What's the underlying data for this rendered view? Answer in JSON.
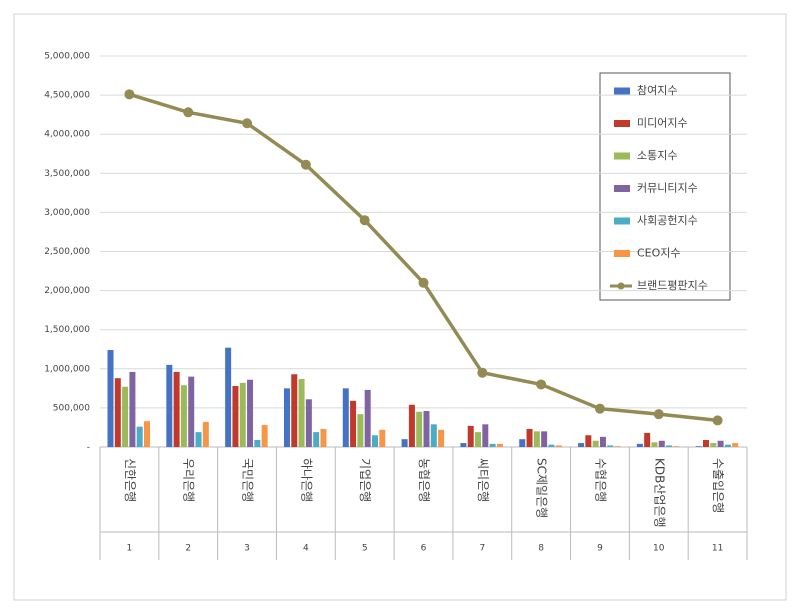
{
  "chart_data": {
    "type": "bar",
    "categories": [
      "신한은행",
      "우리은행",
      "국민은행",
      "하나은행",
      "기업은행",
      "농협은행",
      "씨티은행",
      "SC제일은행",
      "수협은행",
      "KDB산업은행",
      "수출입은행"
    ],
    "ranks": [
      1,
      2,
      3,
      4,
      5,
      6,
      7,
      8,
      9,
      10,
      11
    ],
    "series": [
      {
        "name": "참여지수",
        "color": "#4472c4",
        "values": [
          1240000,
          1050000,
          1270000,
          750000,
          750000,
          100000,
          50000,
          100000,
          50000,
          40000,
          10000
        ]
      },
      {
        "name": "미디어지수",
        "color": "#c0392b",
        "values": [
          880000,
          960000,
          780000,
          930000,
          590000,
          540000,
          270000,
          230000,
          150000,
          180000,
          90000
        ]
      },
      {
        "name": "소통지수",
        "color": "#9bbb59",
        "values": [
          770000,
          790000,
          820000,
          870000,
          420000,
          450000,
          190000,
          200000,
          80000,
          60000,
          50000
        ]
      },
      {
        "name": "커뮤니티지수",
        "color": "#8064a2",
        "values": [
          960000,
          900000,
          860000,
          610000,
          730000,
          460000,
          290000,
          200000,
          130000,
          80000,
          80000
        ]
      },
      {
        "name": "사회공헌지수",
        "color": "#4bacc6",
        "values": [
          260000,
          190000,
          90000,
          190000,
          150000,
          290000,
          40000,
          30000,
          20000,
          20000,
          30000
        ]
      },
      {
        "name": "CEO지수",
        "color": "#f79646",
        "values": [
          330000,
          320000,
          280000,
          230000,
          220000,
          220000,
          40000,
          20000,
          10000,
          10000,
          50000
        ]
      },
      {
        "name": "브랜드평판지수",
        "color": "#948a54",
        "type": "line",
        "values": [
          4510000,
          4280000,
          4140000,
          3610000,
          2900000,
          2100000,
          950000,
          800000,
          490000,
          420000,
          340000
        ]
      }
    ],
    "ylim": [
      0,
      5000000
    ],
    "yticks": [
      {
        "value": 0,
        "label": "-"
      },
      {
        "value": 500000,
        "label": "500,000"
      },
      {
        "value": 1000000,
        "label": "1,000,000"
      },
      {
        "value": 1500000,
        "label": "1,500,000"
      },
      {
        "value": 2000000,
        "label": "2,000,000"
      },
      {
        "value": 2500000,
        "label": "2,500,000"
      },
      {
        "value": 3000000,
        "label": "3,000,000"
      },
      {
        "value": 3500000,
        "label": "3,500,000"
      },
      {
        "value": 4000000,
        "label": "4,000,000"
      },
      {
        "value": 4500000,
        "label": "4,500,000"
      },
      {
        "value": 5000000,
        "label": "5,000,000"
      }
    ],
    "grid": true,
    "legend": "upper-right"
  }
}
